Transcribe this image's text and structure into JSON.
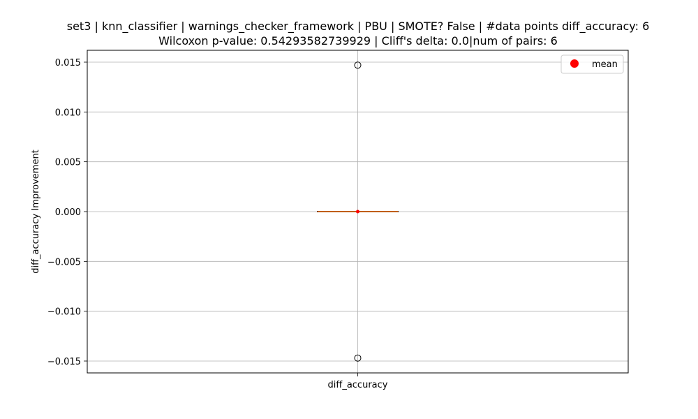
{
  "chart_data": {
    "type": "box",
    "title": [
      "set3 | knn_classifier | warnings_checker_framework | PBU | SMOTE? False | #data points diff_accuracy: 6",
      "Wilcoxon p-value: 0.54293582739929 | Cliff's delta: 0.0|num of pairs: 6"
    ],
    "xlabel": "",
    "ylabel": "diff_accuracy Improvement",
    "categories": [
      "diff_accuracy"
    ],
    "ylim": [
      -0.0162,
      0.0162
    ],
    "yticks": [
      -0.015,
      -0.01,
      -0.005,
      0.0,
      0.005,
      0.01,
      0.015
    ],
    "ytick_labels": [
      "−0.015",
      "−0.010",
      "−0.005",
      "0.000",
      "0.005",
      "0.010",
      "0.015"
    ],
    "grid": true,
    "legend": {
      "placement": "top-right",
      "entries": [
        {
          "label": "mean",
          "color": "#ff0000",
          "marker": "circle"
        }
      ]
    },
    "box": {
      "min": 0.0,
      "q1": 0.0,
      "median": 0.0,
      "q3": 0.0,
      "max": 0.0,
      "mean": 0.0,
      "outliers": [
        0.0147,
        -0.0147
      ]
    },
    "colors": {
      "box": "#000000",
      "median": "#ff7f0e",
      "mean": "#ff0000",
      "grid": "#b0b0b0"
    }
  }
}
